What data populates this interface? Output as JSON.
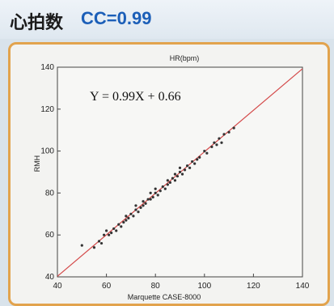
{
  "header": {
    "title_jp": "心拍数",
    "title_cc": "CC=0.99"
  },
  "chart_data": {
    "type": "scatter",
    "title": "HR(bpm)",
    "xlabel": "Marquette CASE-8000",
    "ylabel": "RMH",
    "xlim": [
      40,
      140
    ],
    "ylim": [
      40,
      140
    ],
    "xticks": [
      40,
      60,
      80,
      100,
      120,
      140
    ],
    "yticks": [
      40,
      60,
      80,
      100,
      120,
      140
    ],
    "equation": "Y = 0.99X + 0.66",
    "fit": {
      "slope": 0.99,
      "intercept": 0.66,
      "color": "#d44a4a"
    },
    "grid": false,
    "points_color": "#333333",
    "points": [
      [
        50,
        55
      ],
      [
        55,
        54
      ],
      [
        57,
        57
      ],
      [
        58,
        56
      ],
      [
        59,
        60
      ],
      [
        60,
        62
      ],
      [
        61,
        60
      ],
      [
        62,
        61
      ],
      [
        63,
        63
      ],
      [
        64,
        62
      ],
      [
        65,
        65
      ],
      [
        66,
        64
      ],
      [
        67,
        66
      ],
      [
        68,
        67
      ],
      [
        68,
        69
      ],
      [
        69,
        68
      ],
      [
        70,
        70
      ],
      [
        71,
        69
      ],
      [
        72,
        72
      ],
      [
        72,
        74
      ],
      [
        73,
        71
      ],
      [
        74,
        73
      ],
      [
        75,
        74
      ],
      [
        75,
        76
      ],
      [
        76,
        75
      ],
      [
        77,
        77
      ],
      [
        78,
        77
      ],
      [
        78,
        80
      ],
      [
        79,
        78
      ],
      [
        80,
        80
      ],
      [
        80,
        82
      ],
      [
        81,
        79
      ],
      [
        82,
        81
      ],
      [
        83,
        83
      ],
      [
        84,
        82
      ],
      [
        85,
        84
      ],
      [
        85,
        86
      ],
      [
        86,
        85
      ],
      [
        87,
        87
      ],
      [
        88,
        86
      ],
      [
        88,
        89
      ],
      [
        89,
        88
      ],
      [
        90,
        90
      ],
      [
        90,
        92
      ],
      [
        91,
        89
      ],
      [
        92,
        91
      ],
      [
        93,
        93
      ],
      [
        94,
        92
      ],
      [
        95,
        95
      ],
      [
        96,
        94
      ],
      [
        97,
        96
      ],
      [
        98,
        97
      ],
      [
        100,
        100
      ],
      [
        101,
        99
      ],
      [
        103,
        102
      ],
      [
        104,
        104
      ],
      [
        105,
        103
      ],
      [
        106,
        106
      ],
      [
        107,
        104
      ],
      [
        108,
        108
      ],
      [
        110,
        109
      ],
      [
        112,
        111
      ]
    ]
  }
}
